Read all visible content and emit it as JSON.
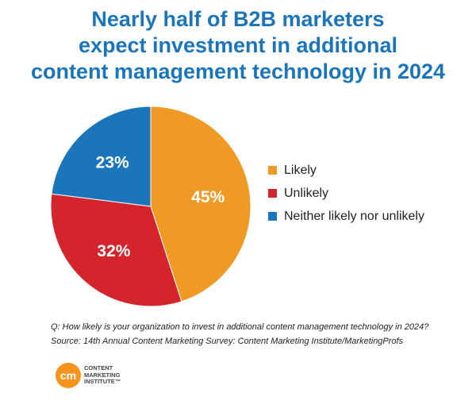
{
  "title_lines": [
    "Nearly half of B2B marketers",
    "expect investment in additional",
    "content management technology in 2024"
  ],
  "chart_data": {
    "type": "pie",
    "title": "Nearly half of B2B marketers expect investment in additional content management technology in 2024",
    "categories": [
      "Likely",
      "Unlikely",
      "Neither likely nor unlikely"
    ],
    "values": [
      45,
      32,
      23
    ],
    "labels": [
      "45%",
      "32%",
      "23%"
    ],
    "colors": [
      "#ef9a25",
      "#d5252c",
      "#1b75bb"
    ],
    "legend_placement": "right",
    "start_angle_deg": 0,
    "direction": "clockwise"
  },
  "notes": {
    "question": "Q: How likely is your organization to invest in additional content management technology in 2024?",
    "source": "Source: 14th Annual Content Marketing Survey: Content Marketing Institute/MarketingProfs"
  },
  "logo": {
    "mark": "cm",
    "lines": [
      "CONTENT",
      "MARKETING",
      "INSTITUTE™"
    ],
    "color": "#f7941d"
  }
}
